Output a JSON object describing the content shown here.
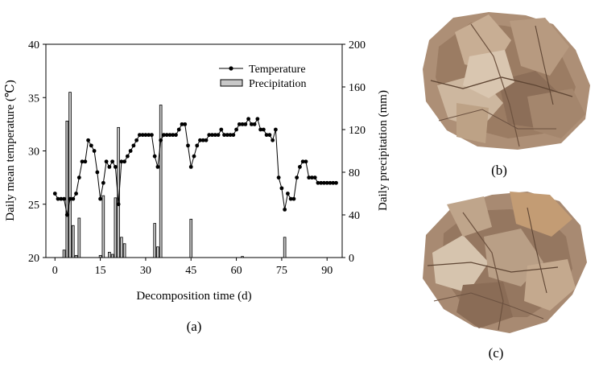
{
  "panels": {
    "a": "(a)",
    "b": "(b)",
    "c": "(c)"
  },
  "photos": {
    "b": "leaf-litter-pile-b",
    "c": "leaf-litter-pile-c"
  },
  "chart_data": {
    "type": "line+bar",
    "xlabel": "Decomposition time (d)",
    "ylabel_left": "Daily mean temperature (℃)",
    "ylabel_right": "Daily precipitation (mm)",
    "xlim": [
      -3,
      95
    ],
    "ylim_left": [
      20,
      40
    ],
    "ylim_right": [
      0,
      200
    ],
    "x_ticks": [
      0,
      15,
      30,
      45,
      60,
      75,
      90
    ],
    "y_left_ticks": [
      20,
      25,
      30,
      35,
      40
    ],
    "y_right_ticks": [
      0,
      40,
      80,
      120,
      160,
      200
    ],
    "grid": false,
    "legend_position": "top-right",
    "colors": {
      "line": "#000000",
      "bar_fill": "#c8c8c8",
      "bar_stroke": "#000000"
    },
    "series": [
      {
        "name": "Temperature",
        "type": "line",
        "axis": "left",
        "x": [
          0,
          1,
          2,
          3,
          4,
          5,
          6,
          7,
          8,
          9,
          10,
          11,
          12,
          13,
          14,
          15,
          16,
          17,
          18,
          19,
          20,
          21,
          22,
          23,
          24,
          25,
          26,
          27,
          28,
          29,
          30,
          31,
          32,
          33,
          34,
          35,
          36,
          37,
          38,
          39,
          40,
          41,
          42,
          43,
          44,
          45,
          46,
          47,
          48,
          49,
          50,
          51,
          52,
          53,
          54,
          55,
          56,
          57,
          58,
          59,
          60,
          61,
          62,
          63,
          64,
          65,
          66,
          67,
          68,
          69,
          70,
          71,
          72,
          73,
          74,
          75,
          76,
          77,
          78,
          79,
          80,
          81,
          82,
          83,
          84,
          85,
          86,
          87,
          88,
          89,
          90,
          91,
          92,
          93
        ],
        "y": [
          26.0,
          25.5,
          25.5,
          25.5,
          24.0,
          25.5,
          25.5,
          26.0,
          27.5,
          29.0,
          29.0,
          31.0,
          30.5,
          30.0,
          28.0,
          25.5,
          27.0,
          29.0,
          28.5,
          29.0,
          28.5,
          25.0,
          29.0,
          29.0,
          29.5,
          30.0,
          30.5,
          31.0,
          31.5,
          31.5,
          31.5,
          31.5,
          31.5,
          29.5,
          28.5,
          31.0,
          31.5,
          31.5,
          31.5,
          31.5,
          31.5,
          32.0,
          32.5,
          32.5,
          30.5,
          28.5,
          29.5,
          30.5,
          31.0,
          31.0,
          31.0,
          31.5,
          31.5,
          31.5,
          31.5,
          32.0,
          31.5,
          31.5,
          31.5,
          31.5,
          32.0,
          32.5,
          32.5,
          32.5,
          33.0,
          32.5,
          32.5,
          33.0,
          32.0,
          32.0,
          31.5,
          31.5,
          31.0,
          32.0,
          27.5,
          26.5,
          24.5,
          26.0,
          25.5,
          25.5,
          27.5,
          28.5,
          29.0,
          29.0,
          27.5,
          27.5,
          27.5,
          27.0,
          27.0,
          27.0,
          27.0,
          27.0,
          27.0,
          27.0
        ]
      },
      {
        "name": "Precipitation",
        "type": "bar",
        "axis": "right",
        "x": [
          3,
          4,
          5,
          6,
          7,
          8,
          15,
          16,
          18,
          19,
          20,
          21,
          22,
          23,
          24,
          33,
          34,
          35,
          45,
          62,
          76
        ],
        "values": [
          7,
          128,
          155,
          30,
          2,
          37,
          2,
          58,
          5,
          3,
          56,
          122,
          19,
          13,
          0,
          32,
          10,
          143,
          36,
          1,
          19
        ]
      }
    ]
  }
}
